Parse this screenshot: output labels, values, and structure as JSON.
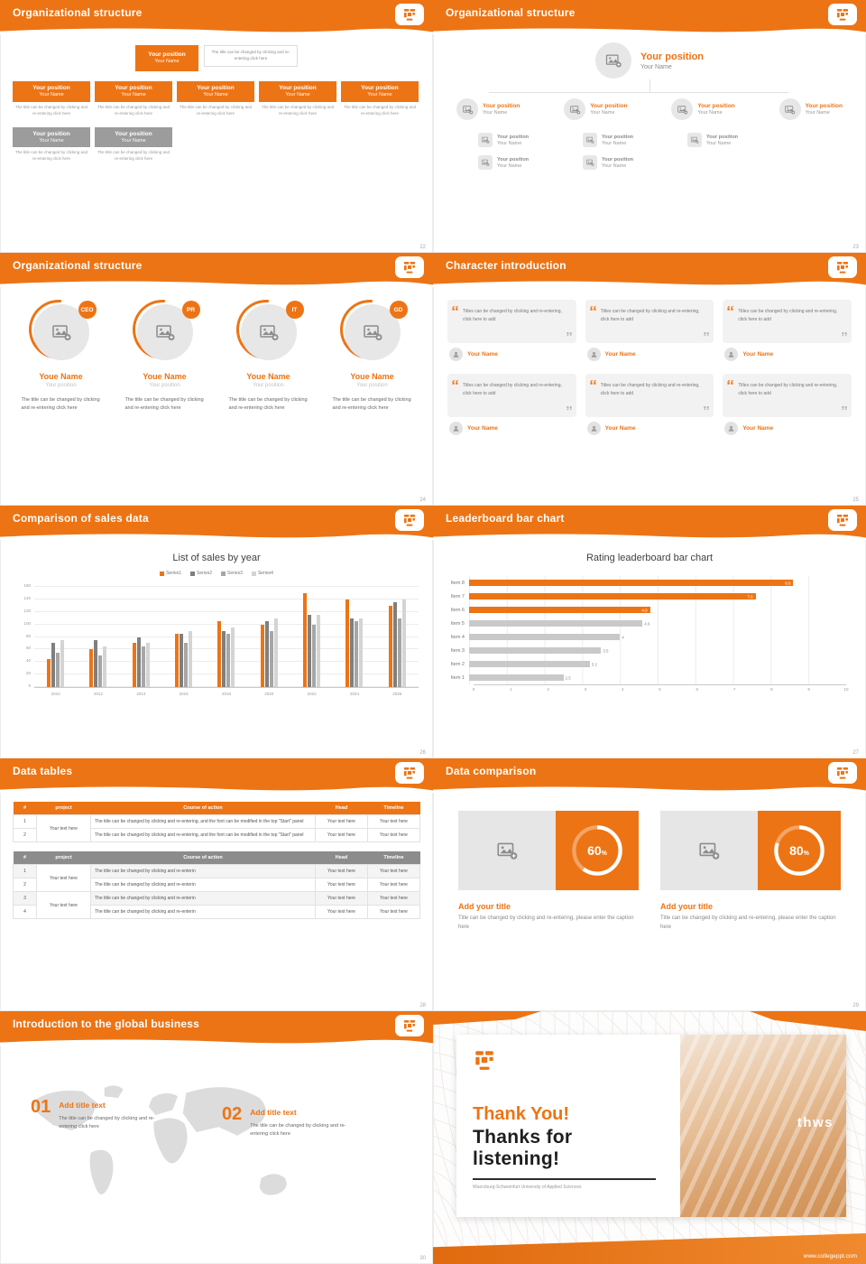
{
  "theme": {
    "orange": "#ED7414",
    "dark_gray": "#7F7F7F",
    "mid_gray": "#A6A6A6",
    "light_gray": "#D4D4D4",
    "card_gray": "#F2F2F2"
  },
  "common": {
    "position": "Your position",
    "name": "Your Name",
    "caption": "The title can be changed by clicking and re-entering click here"
  },
  "slides": {
    "s22": {
      "title": "Organizational structure",
      "page": "22",
      "note": "The title can be changed by clicking and re-entering click here"
    },
    "s23": {
      "title": "Organizational structure",
      "page": "23"
    },
    "s24": {
      "title": "Organizational structure",
      "page": "24",
      "name": "Youe Name",
      "position": "Your position",
      "badges": [
        "CEO",
        "PR",
        "IT",
        "GD"
      ],
      "caption": "The title can be changed by clicking and re-entering click here"
    },
    "s25": {
      "title": "Character introduction",
      "page": "25",
      "quote": "Titles can be changed by clicking and re-entering, click here to add",
      "name": "Your Name"
    },
    "s26": {
      "title": "Comparison of sales data",
      "page": "26"
    },
    "s27": {
      "title": "Leaderboard bar chart",
      "page": "27"
    },
    "s28": {
      "title": "Data tables",
      "page": "28",
      "headers": [
        "#",
        "project",
        "Course of action",
        "Head",
        "Timeline"
      ],
      "cell": "Your text here",
      "long_text": "The title can be changed by clicking and re-entering, and the font can be modified in the top \"Start\" panel",
      "short_text": "The title can be changed by clicking and re-enterin",
      "t1_rows": [
        "1",
        "2"
      ],
      "t2_rows": [
        "1",
        "2",
        "3",
        "4"
      ]
    },
    "s29": {
      "title": "Data comparison",
      "page": "29",
      "percent_sign": "%",
      "items": [
        {
          "percent": "60",
          "title": "Add your title",
          "caption": "Title can be changed by clicking and re-entering, please enter the caption here"
        },
        {
          "percent": "80",
          "title": "Add your title",
          "caption": "Title can be changed by clicking and re-entering, please enter the caption here"
        }
      ]
    },
    "s30": {
      "title": "Introduction to the global business",
      "page": "30",
      "items": [
        {
          "num": "01",
          "title": "Add title text",
          "caption": "The title can be changed by clicking and re-entering click here"
        },
        {
          "num": "02",
          "title": "Add title text",
          "caption": "The title can be changed by clicking and re-entering click here"
        }
      ]
    },
    "s31": {
      "thank": "Thank You!",
      "listening": "Thanks for listening!",
      "school": "Wuerzburg-Schweinfurt University of Applied Sciences",
      "photo_text": "thws",
      "website": "www.collegeppt.com"
    }
  },
  "chart_data": [
    {
      "type": "bar",
      "title": "List of sales by year",
      "categories": [
        "2010",
        "2012",
        "2014",
        "2016",
        "2018",
        "2020",
        "2022",
        "2024",
        "2026"
      ],
      "series": [
        {
          "name": "Series1",
          "color": "#ED7414",
          "values": [
            45,
            60,
            70,
            85,
            105,
            100,
            150,
            140,
            130
          ]
        },
        {
          "name": "Series2",
          "color": "#7F7F7F",
          "values": [
            70,
            75,
            80,
            85,
            90,
            105,
            115,
            110,
            135
          ]
        },
        {
          "name": "Series3",
          "color": "#A6A6A6",
          "values": [
            55,
            50,
            65,
            70,
            85,
            90,
            100,
            105,
            110
          ]
        },
        {
          "name": "Series4",
          "color": "#D4D4D4",
          "values": [
            75,
            65,
            70,
            90,
            95,
            110,
            115,
            110,
            140
          ]
        }
      ],
      "ylim": [
        0,
        160
      ],
      "ytick": 20,
      "legend_position": "top",
      "grid": true
    },
    {
      "type": "hbar",
      "title": "Rating leaderboard bar chart",
      "categories": [
        "Item 1",
        "Item 2",
        "Item 3",
        "Item 4",
        "Item 5",
        "Item 6",
        "Item 7",
        "Item 8"
      ],
      "values": [
        2.5,
        3.2,
        3.5,
        4,
        4.6,
        4.8,
        7.6,
        8.6
      ],
      "colors": [
        "#C9C9C9",
        "#C9C9C9",
        "#C9C9C9",
        "#C9C9C9",
        "#C9C9C9",
        "#ED7414",
        "#ED7414",
        "#ED7414"
      ],
      "xlim": [
        0,
        10
      ],
      "grid": true
    }
  ]
}
